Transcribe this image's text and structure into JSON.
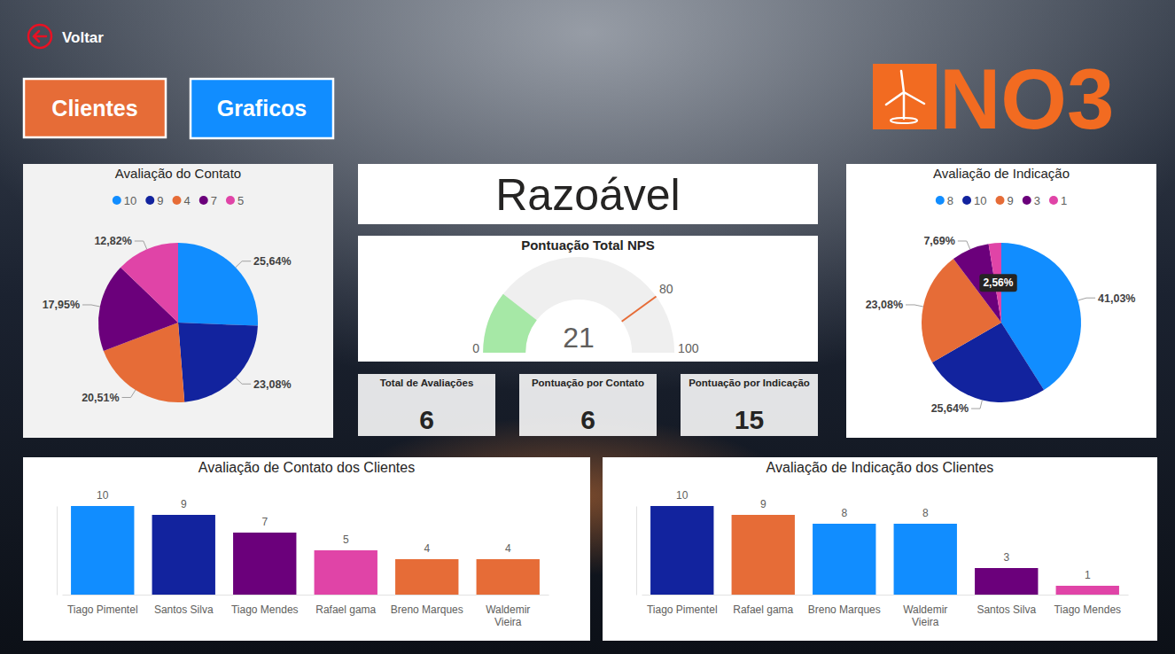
{
  "page": {
    "back_label": "Voltar",
    "buttons": [
      "Clientes",
      "Graficos"
    ],
    "logo": "NO3",
    "status": "Razoável",
    "kpis": [
      {
        "title": "Total de Avaliações",
        "value": 6
      },
      {
        "title": "Pontuação por Contato",
        "value": 6
      },
      {
        "title": "Pontuação por Indicação",
        "value": 15
      }
    ]
  },
  "chart_data": [
    {
      "type": "pie",
      "title": "Avaliação do Contato",
      "categories": [
        "10",
        "9",
        "4",
        "7",
        "5"
      ],
      "values": [
        25.64,
        23.08,
        20.51,
        17.95,
        12.82
      ],
      "value_labels": [
        "25,64%",
        "23,08%",
        "20,51%",
        "17,95%",
        "12,82%"
      ],
      "colors": [
        "#118DFF",
        "#12239E",
        "#E66C37",
        "#6B007B",
        "#E044A7"
      ],
      "legend": "top",
      "data_labels": true
    },
    {
      "type": "gauge",
      "title": "Pontuação Total NPS",
      "value": 21,
      "target": 80,
      "ylim": [
        0,
        100
      ],
      "yticks": [
        0,
        100
      ],
      "color": "#A6E8A6"
    },
    {
      "type": "pie",
      "title": "Avaliação de Indicação",
      "categories": [
        "8",
        "10",
        "9",
        "3",
        "1"
      ],
      "values": [
        41.03,
        25.64,
        23.08,
        7.69,
        2.56
      ],
      "value_labels": [
        "41,03%",
        "25,64%",
        "23,08%",
        "7,69%",
        "2,56%"
      ],
      "colors": [
        "#118DFF",
        "#12239E",
        "#E66C37",
        "#6B007B",
        "#E044A7"
      ],
      "legend": "top",
      "data_labels": true
    },
    {
      "type": "bar",
      "title": "Avaliação de Contato dos Clientes",
      "categories": [
        "Tiago Pimentel",
        "Santos Silva",
        "Tiago Mendes",
        "Rafael gama",
        "Breno Marques",
        "Waldemir Vieira"
      ],
      "values": [
        10,
        9,
        7,
        5,
        4,
        4
      ],
      "colors": [
        "#118DFF",
        "#12239E",
        "#6B007B",
        "#E044A7",
        "#E66C37",
        "#E66C37"
      ],
      "ylim": [
        0,
        10
      ],
      "data_labels": true,
      "tick_labels": "x"
    },
    {
      "type": "bar",
      "title": "Avaliação de Indicação dos Clientes",
      "categories": [
        "Tiago Pimentel",
        "Rafael gama",
        "Breno Marques",
        "Waldemir Vieira",
        "Santos Silva",
        "Tiago Mendes"
      ],
      "values": [
        10,
        9,
        8,
        8,
        3,
        1
      ],
      "colors": [
        "#12239E",
        "#E66C37",
        "#118DFF",
        "#118DFF",
        "#6B007B",
        "#E044A7"
      ],
      "ylim": [
        0,
        10
      ],
      "data_labels": true,
      "tick_labels": "x"
    }
  ]
}
